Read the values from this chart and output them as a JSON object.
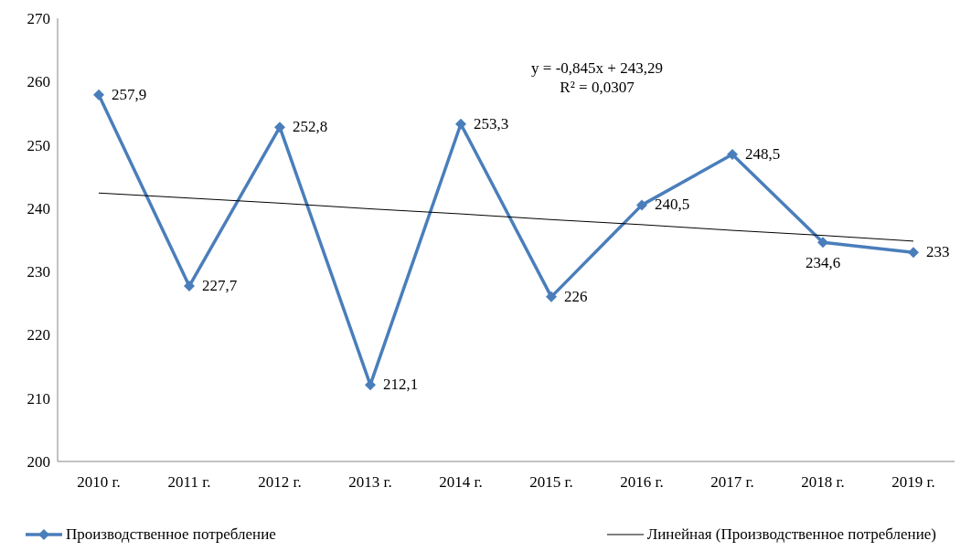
{
  "chart_data": {
    "type": "line",
    "categories": [
      "2010 г.",
      "2011 г.",
      "2012 г.",
      "2013 г.",
      "2014 г.",
      "2015 г.",
      "2016 г.",
      "2017 г.",
      "2018 г.",
      "2019 г."
    ],
    "series": [
      {
        "name": "Производственное потребление",
        "color": "#4a7ebb",
        "marker": "diamond",
        "values": [
          257.9,
          227.7,
          252.8,
          212.1,
          253.3,
          226,
          240.5,
          248.5,
          234.6,
          233
        ],
        "value_labels": [
          "257,9",
          "227,7",
          "252,8",
          "212,1",
          "253,3",
          "226",
          "240,5",
          "248,5",
          "234,6",
          "233"
        ]
      },
      {
        "name": "Линейная (Производственное потребление)",
        "color": "#000000",
        "marker": "none",
        "values": [
          242.4,
          241.6,
          240.8,
          239.9,
          239.1,
          238.2,
          237.4,
          236.5,
          235.7,
          234.8
        ]
      }
    ],
    "ylim": [
      200,
      270
    ],
    "yticks": [
      200,
      210,
      220,
      230,
      240,
      250,
      260,
      270
    ],
    "grid": false,
    "legend": "bottom",
    "line_style": "solid",
    "annotations": [
      "y = -0,845x + 243,29",
      "R² = 0,0307"
    ]
  }
}
